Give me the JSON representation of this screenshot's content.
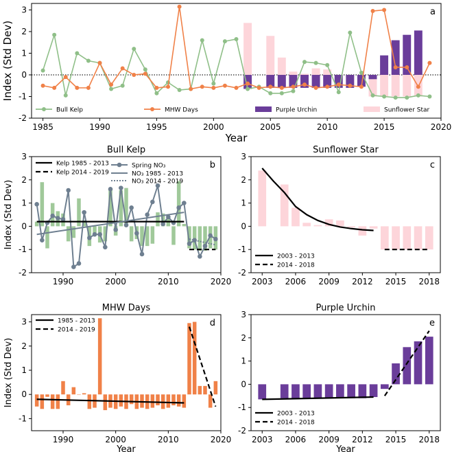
{
  "colors": {
    "kelp": "#8fbf88",
    "mhw": "#f08148",
    "urchin": "#6a3d9a",
    "star": "#fdd5da",
    "no3": "#6e7f90"
  },
  "chart_data": [
    {
      "panel": "a",
      "type": "line",
      "ylabel": "Index (Std Dev)",
      "xlabel": "Year",
      "xlim": [
        1984,
        2020
      ],
      "ylim": [
        -2,
        3.3
      ],
      "xticks": [
        1985,
        1990,
        1995,
        2000,
        2005,
        2010,
        2015,
        2020
      ],
      "yticks": [
        -2,
        -1,
        0,
        1,
        2,
        3
      ],
      "legend": [
        "Bull Kelp",
        "MHW Days",
        "Purple Urchin",
        "Sunflower Star"
      ],
      "series": [
        {
          "name": "Bull Kelp",
          "kind": "line",
          "color_key": "kelp",
          "x": [
            1985,
            1986,
            1987,
            1988,
            1989,
            1990,
            1991,
            1992,
            1993,
            1994,
            1995,
            1996,
            1997,
            1998,
            1999,
            2000,
            2001,
            2002,
            2003,
            2004,
            2005,
            2006,
            2007,
            2008,
            2009,
            2010,
            2011,
            2012,
            2013,
            2014,
            2015,
            2016,
            2017,
            2018,
            2019
          ],
          "y": [
            0.2,
            1.85,
            -0.95,
            1.0,
            0.65,
            0.55,
            -0.65,
            -0.5,
            1.2,
            0.25,
            -0.85,
            -0.35,
            -0.7,
            -0.65,
            1.6,
            -0.4,
            1.55,
            1.65,
            -0.65,
            -0.55,
            -0.85,
            -0.85,
            -0.75,
            0.6,
            0.55,
            0.45,
            -0.8,
            1.95,
            0.1,
            -0.95,
            -1.0,
            -1.05,
            -1.05,
            -0.95,
            -1.0
          ]
        },
        {
          "name": "MHW Days",
          "kind": "line",
          "color_key": "mhw",
          "x": [
            1985,
            1986,
            1987,
            1988,
            1989,
            1990,
            1991,
            1992,
            1993,
            1994,
            1995,
            1996,
            1997,
            1998,
            1999,
            2000,
            2001,
            2002,
            2003,
            2004,
            2005,
            2006,
            2007,
            2008,
            2009,
            2010,
            2011,
            2012,
            2013,
            2014,
            2015,
            2016,
            2017,
            2018,
            2019
          ],
          "y": [
            -0.5,
            -0.6,
            -0.1,
            -0.6,
            -0.6,
            0.55,
            -0.45,
            0.3,
            0.0,
            0.05,
            -0.6,
            -0.55,
            3.15,
            -0.65,
            -0.55,
            -0.6,
            -0.5,
            -0.6,
            -0.4,
            -0.6,
            -0.55,
            -0.6,
            -0.55,
            -0.45,
            -0.6,
            -0.55,
            -0.45,
            -0.5,
            -0.55,
            2.95,
            3.0,
            0.35,
            0.35,
            -0.55,
            0.55
          ]
        },
        {
          "name": "Purple Urchin",
          "kind": "bar",
          "color_key": "urchin",
          "x": [
            2003,
            2005,
            2006,
            2007,
            2008,
            2009,
            2010,
            2011,
            2012,
            2013,
            2014,
            2015,
            2016,
            2017,
            2018
          ],
          "y": [
            -0.65,
            -0.6,
            -0.6,
            -0.6,
            -0.6,
            -0.6,
            -0.6,
            -0.6,
            -0.6,
            -0.55,
            -0.2,
            0.9,
            1.6,
            1.85,
            2.05
          ]
        },
        {
          "name": "Sunflower Star",
          "kind": "bar",
          "color_key": "star",
          "x": [
            2003,
            2005,
            2006,
            2007,
            2008,
            2009,
            2010,
            2011,
            2012,
            2013,
            2014,
            2015,
            2016,
            2017,
            2018
          ],
          "y": [
            2.4,
            1.8,
            0.8,
            0.15,
            0.05,
            0.3,
            0.25,
            -0.05,
            -0.4,
            -0.1,
            -1.0,
            -1.0,
            -1.0,
            -1.0,
            -1.0
          ]
        }
      ],
      "annotations": [
        {
          "text": "a"
        }
      ]
    },
    {
      "panel": "b",
      "type": "bar",
      "title": "Bull Kelp",
      "ylabel": "Index (Std Dev)",
      "xlabel": "",
      "xlim": [
        1984,
        2020
      ],
      "ylim": [
        -2,
        3
      ],
      "xticks": [
        1990,
        2000,
        2010,
        2020
      ],
      "yticks": [
        -2,
        -1,
        0,
        1,
        2,
        3
      ],
      "legend": [
        "Kelp 1985 - 2013",
        "Kelp 2014 - 2019",
        "Spring NO₃",
        "NO₃ 1985 - 2013",
        "NO₃ 2014 - 2019"
      ],
      "series": [
        {
          "name": "Bull Kelp",
          "kind": "bar",
          "x": [
            1985,
            1986,
            1987,
            1988,
            1989,
            1990,
            1991,
            1992,
            1993,
            1994,
            1995,
            1996,
            1997,
            1998,
            1999,
            2000,
            2001,
            2002,
            2003,
            2004,
            2005,
            2006,
            2007,
            2008,
            2009,
            2010,
            2011,
            2012,
            2013,
            2014,
            2015,
            2016,
            2017,
            2018,
            2019
          ],
          "y": [
            0.2,
            1.9,
            -0.95,
            1.0,
            0.65,
            0.55,
            -0.65,
            -0.5,
            1.2,
            0.25,
            -0.85,
            -0.35,
            -0.7,
            -0.65,
            1.6,
            -0.4,
            1.55,
            1.65,
            -0.65,
            -0.55,
            -0.85,
            -0.85,
            -0.75,
            0.6,
            0.55,
            0.45,
            -0.8,
            1.95,
            0.1,
            -0.95,
            -1.0,
            -1.05,
            -1.05,
            -0.95,
            -1.0
          ]
        },
        {
          "name": "Spring NO₃",
          "kind": "line",
          "x": [
            1985,
            1986,
            1987,
            1988,
            1989,
            1990,
            1991,
            1992,
            1993,
            1994,
            1995,
            1996,
            1997,
            1998,
            1999,
            2000,
            2001,
            2002,
            2003,
            2004,
            2005,
            2006,
            2007,
            2008,
            2009,
            2010,
            2011,
            2012,
            2013,
            2014,
            2015,
            2016,
            2017,
            2018,
            2019
          ],
          "y": [
            0.95,
            -0.6,
            0.15,
            0.45,
            0.35,
            0.3,
            1.55,
            -1.75,
            -1.6,
            0.6,
            -0.5,
            -0.35,
            -0.35,
            -0.9,
            1.6,
            -0.15,
            1.65,
            0.05,
            0.8,
            -0.3,
            -1.2,
            0.5,
            1.05,
            1.75,
            0.1,
            0.4,
            0.15,
            0.8,
            1.0,
            -0.75,
            -0.6,
            -1.3,
            -0.85,
            -0.4,
            -0.55
          ]
        },
        {
          "name": "Kelp 1985 - 2013",
          "kind": "trend",
          "x": [
            1985,
            2013
          ],
          "y": [
            0.2,
            0.2
          ]
        },
        {
          "name": "Kelp 2014 - 2019",
          "kind": "trend",
          "x": [
            2014,
            2019
          ],
          "y": [
            -1.0,
            -1.0
          ]
        },
        {
          "name": "NO₃ 1985 - 2013",
          "kind": "trend",
          "x": [
            1985,
            2013
          ],
          "y": [
            -0.35,
            0.6
          ]
        },
        {
          "name": "NO₃ 2014 - 2019",
          "kind": "trend",
          "x": [
            2014,
            2019
          ],
          "y": [
            -0.55,
            -0.8
          ]
        }
      ],
      "annotations": [
        {
          "text": "b"
        }
      ]
    },
    {
      "panel": "c",
      "type": "bar",
      "title": "Sunflower Star",
      "ylabel": "",
      "xlabel": "",
      "xlim": [
        2002,
        2019
      ],
      "ylim": [
        -2,
        3
      ],
      "xticks": [
        2003,
        2006,
        2009,
        2012,
        2015,
        2018
      ],
      "yticks": [
        -2,
        -1,
        0,
        1,
        2,
        3
      ],
      "legend": [
        "2003 - 2013",
        "2014 - 2018"
      ],
      "series": [
        {
          "name": "Sunflower Star",
          "kind": "bar",
          "x": [
            2003,
            2005,
            2006,
            2007,
            2008,
            2009,
            2010,
            2011,
            2012,
            2013,
            2014,
            2015,
            2016,
            2017,
            2018
          ],
          "y": [
            2.4,
            1.8,
            0.8,
            0.15,
            0.05,
            0.3,
            0.25,
            -0.05,
            -0.4,
            -0.1,
            -1.0,
            -1.0,
            -1.0,
            -1.0,
            -1.0
          ]
        },
        {
          "name": "2003 - 2013",
          "kind": "trend",
          "x": [
            2003,
            2004,
            2005,
            2006,
            2007,
            2008,
            2009,
            2010,
            2011,
            2012,
            2013
          ],
          "y": [
            2.5,
            1.95,
            1.45,
            0.85,
            0.5,
            0.25,
            0.08,
            -0.03,
            -0.1,
            -0.15,
            -0.18
          ]
        },
        {
          "name": "2014 - 2018",
          "kind": "trend",
          "x": [
            2014,
            2018
          ],
          "y": [
            -1.0,
            -1.0
          ]
        }
      ],
      "annotations": [
        {
          "text": "c"
        }
      ]
    },
    {
      "panel": "d",
      "type": "bar",
      "title": "MHW Days",
      "ylabel": "Index (Std Dev)",
      "xlabel": "Year",
      "xlim": [
        1984,
        2020
      ],
      "ylim": [
        -1.5,
        3.3
      ],
      "xticks": [
        1990,
        2000,
        2010,
        2020
      ],
      "yticks": [
        -1,
        0,
        1,
        2,
        3
      ],
      "legend": [
        "1985 - 2013",
        "2014 - 2019"
      ],
      "series": [
        {
          "name": "MHW Days",
          "kind": "bar",
          "x": [
            1985,
            1986,
            1987,
            1988,
            1989,
            1990,
            1991,
            1992,
            1993,
            1994,
            1995,
            1996,
            1997,
            1998,
            1999,
            2000,
            2001,
            2002,
            2003,
            2004,
            2005,
            2006,
            2007,
            2008,
            2009,
            2010,
            2011,
            2012,
            2013,
            2014,
            2015,
            2016,
            2017,
            2018,
            2019
          ],
          "y": [
            -0.5,
            -0.6,
            -0.1,
            -0.6,
            -0.6,
            0.55,
            -0.45,
            0.3,
            0.0,
            0.05,
            -0.6,
            -0.55,
            3.15,
            -0.65,
            -0.55,
            -0.6,
            -0.5,
            -0.6,
            -0.4,
            -0.6,
            -0.55,
            -0.6,
            -0.55,
            -0.45,
            -0.6,
            -0.55,
            -0.45,
            -0.5,
            -0.55,
            2.95,
            3.0,
            0.35,
            0.35,
            -0.55,
            0.55
          ]
        },
        {
          "name": "1985 - 2013",
          "kind": "trend",
          "x": [
            1985,
            2013
          ],
          "y": [
            -0.2,
            -0.35
          ]
        },
        {
          "name": "2014 - 2019",
          "kind": "trend",
          "x": [
            2014,
            2019
          ],
          "y": [
            2.8,
            -0.5
          ]
        }
      ],
      "annotations": [
        {
          "text": "d"
        }
      ]
    },
    {
      "panel": "e",
      "type": "bar",
      "title": "Purple Urchin",
      "ylabel": "",
      "xlabel": "Year",
      "xlim": [
        2002,
        2019
      ],
      "ylim": [
        -2,
        3
      ],
      "xticks": [
        2003,
        2006,
        2009,
        2012,
        2015,
        2018
      ],
      "yticks": [
        -2,
        -1,
        0,
        1,
        2,
        3
      ],
      "legend": [
        "2003 - 2013",
        "2014 - 2018"
      ],
      "series": [
        {
          "name": "Purple Urchin",
          "kind": "bar",
          "x": [
            2003,
            2005,
            2006,
            2007,
            2008,
            2009,
            2010,
            2011,
            2012,
            2013,
            2014,
            2015,
            2016,
            2017,
            2018
          ],
          "y": [
            -0.65,
            -0.6,
            -0.6,
            -0.6,
            -0.6,
            -0.6,
            -0.6,
            -0.6,
            -0.6,
            -0.55,
            -0.2,
            0.9,
            1.6,
            1.85,
            2.05
          ]
        },
        {
          "name": "2003 - 2013",
          "kind": "trend",
          "x": [
            2003,
            2013
          ],
          "y": [
            -0.65,
            -0.55
          ]
        },
        {
          "name": "2014 - 2018",
          "kind": "trend",
          "x": [
            2014,
            2018
          ],
          "y": [
            -0.5,
            2.3
          ]
        }
      ],
      "annotations": [
        {
          "text": "e"
        }
      ]
    }
  ]
}
